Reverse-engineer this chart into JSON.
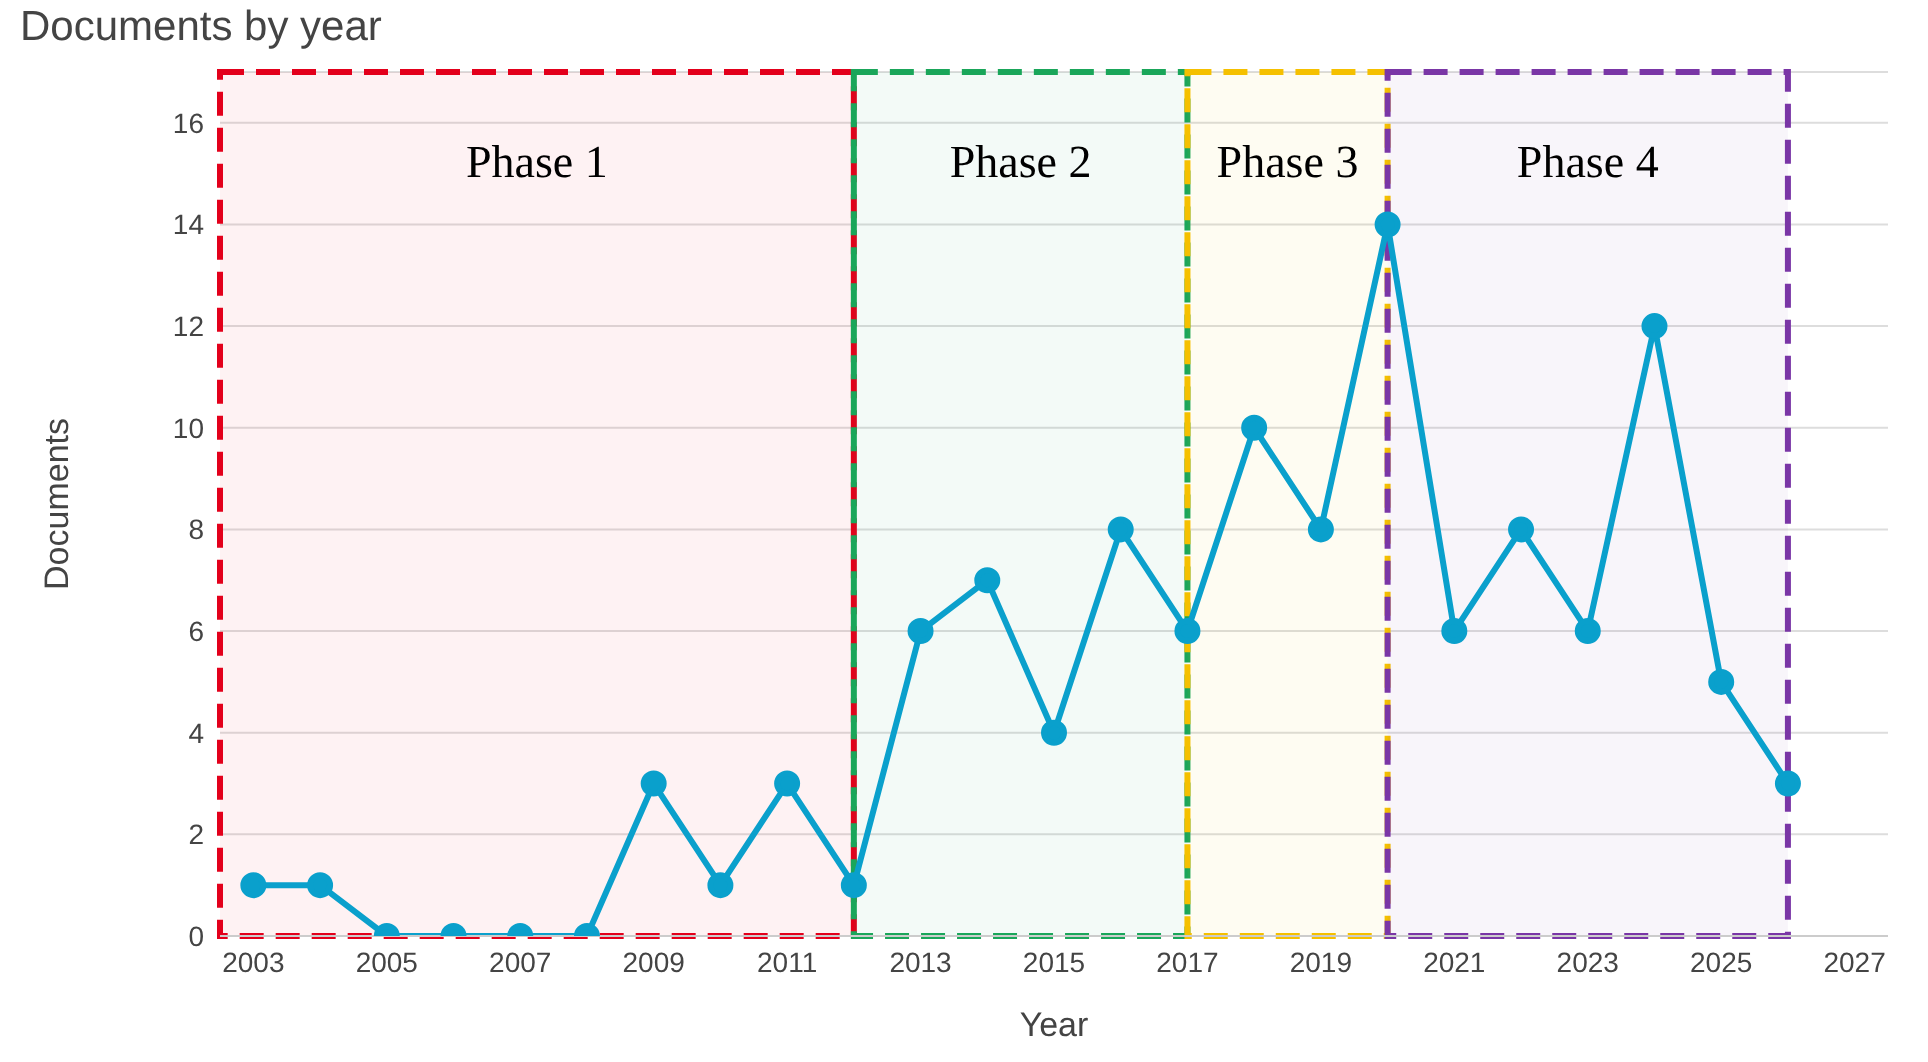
{
  "chart_data": {
    "type": "line",
    "title": "Documents by year",
    "xlabel": "Year",
    "ylabel": "Documents",
    "x": [
      2003,
      2004,
      2005,
      2006,
      2007,
      2008,
      2009,
      2010,
      2011,
      2012,
      2013,
      2014,
      2015,
      2016,
      2017,
      2018,
      2019,
      2020,
      2021,
      2022,
      2023,
      2024,
      2025,
      2026
    ],
    "series": [
      {
        "color": "#0aa0cc",
        "values": [
          1,
          1,
          0,
          0,
          0,
          0,
          3,
          1,
          3,
          1,
          6,
          7,
          4,
          8,
          6,
          10,
          8,
          14,
          6,
          8,
          6,
          12,
          5,
          3
        ]
      }
    ],
    "xlim": [
      2002.5,
      2027.5
    ],
    "xticks": [
      2003,
      2005,
      2007,
      2009,
      2011,
      2013,
      2015,
      2017,
      2019,
      2021,
      2023,
      2025,
      2027
    ],
    "ylim": [
      0,
      17
    ],
    "yticks": [
      0,
      2,
      4,
      6,
      8,
      10,
      12,
      14,
      16
    ],
    "grid": "y",
    "marker": "circle",
    "line_style": "solid",
    "bands": [
      {
        "axis": "x",
        "from": 2002.5,
        "to": 2012,
        "label": "Phase 1",
        "color": "#e3001b"
      },
      {
        "axis": "x",
        "from": 2012,
        "to": 2017,
        "label": "Phase 2",
        "color": "#1aa65a"
      },
      {
        "axis": "x",
        "from": 2017,
        "to": 2020,
        "label": "Phase 3",
        "color": "#f5c000"
      },
      {
        "axis": "x",
        "from": 2020,
        "to": 2026,
        "label": "Phase 4",
        "color": "#7a36a6"
      }
    ]
  }
}
